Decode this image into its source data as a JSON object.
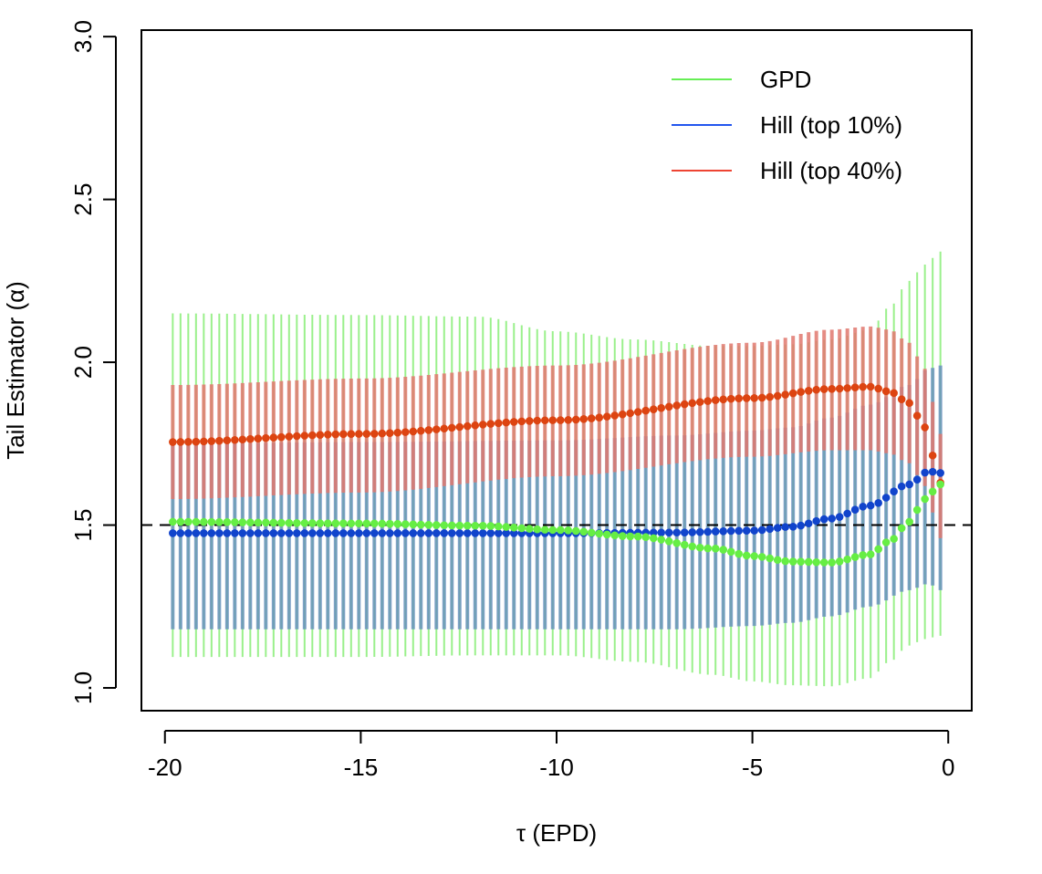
{
  "chart_data": {
    "type": "scatter",
    "title": "",
    "xlabel": "τ (EPD)",
    "ylabel": "Tail Estimator (α)",
    "xlim": [
      -20.6,
      0.6
    ],
    "ylim": [
      0.93,
      3.02
    ],
    "xticks": [
      -20,
      -15,
      -10,
      -5,
      0
    ],
    "xtick_labels": [
      "-20",
      "-15",
      "-10",
      "-5",
      "0"
    ],
    "yticks": [
      1.0,
      1.5,
      2.0,
      2.5,
      3.0
    ],
    "ytick_labels": [
      "1.0",
      "1.5",
      "2.0",
      "2.5",
      "3.0"
    ],
    "reference_line": {
      "y": 1.5,
      "style": "dashed",
      "color": "#000000"
    },
    "legend": {
      "placement": "top-right",
      "entries": [
        {
          "label": "GPD",
          "color": "#66ee55"
        },
        {
          "label": "Hill (top 10%)",
          "color": "#2255ee"
        },
        {
          "label": "Hill (top 40%)",
          "color": "#ee4433"
        }
      ]
    },
    "x_grid": {
      "start": -19.8,
      "end": -0.2,
      "count": 100
    },
    "series": [
      {
        "name": "Hill (top 40%)",
        "color": "#ee4433",
        "point_color": "#dd4411",
        "band_color": "rgba(225,120,110,0.85)",
        "band_width": 4,
        "profile": {
          "x": [
            -19.8,
            -15.0,
            -10.0,
            -5.0,
            -3.0,
            -2.0,
            -1.5,
            -1.0,
            -0.6,
            -0.2
          ],
          "y": [
            1.755,
            1.78,
            1.822,
            1.89,
            1.918,
            1.925,
            1.91,
            1.875,
            1.8,
            1.63
          ],
          "lower": [
            1.58,
            1.6,
            1.65,
            1.71,
            1.73,
            1.73,
            1.72,
            1.69,
            1.62,
            1.46
          ],
          "upper": [
            1.93,
            1.95,
            1.99,
            2.06,
            2.1,
            2.11,
            2.1,
            2.06,
            1.98,
            1.78
          ]
        }
      },
      {
        "name": "Hill (top 10%)",
        "color": "#2255ee",
        "point_color": "#1144cc",
        "band_color": "rgba(100,140,190,0.8)",
        "band_width": 4,
        "profile": {
          "x": [
            -19.8,
            -15.0,
            -10.0,
            -7.0,
            -5.0,
            -4.0,
            -3.0,
            -2.0,
            -1.0,
            -0.5,
            -0.2
          ],
          "y": [
            1.475,
            1.475,
            1.475,
            1.477,
            1.483,
            1.495,
            1.52,
            1.56,
            1.625,
            1.665,
            1.66
          ],
          "lower": [
            1.18,
            1.18,
            1.18,
            1.18,
            1.19,
            1.2,
            1.22,
            1.25,
            1.3,
            1.32,
            1.3
          ],
          "upper": [
            1.75,
            1.755,
            1.76,
            1.775,
            1.79,
            1.8,
            1.83,
            1.87,
            1.93,
            1.98,
            1.99
          ]
        }
      },
      {
        "name": "GPD",
        "color": "#66ee55",
        "point_color": "#66ee44",
        "band_color": "rgba(120,235,100,0.75)",
        "band_width": 2,
        "profile": {
          "x": [
            -19.8,
            -15.0,
            -12.0,
            -10.0,
            -8.0,
            -6.0,
            -5.0,
            -4.0,
            -3.0,
            -2.0,
            -1.5,
            -1.0,
            -0.6,
            -0.2
          ],
          "y": [
            1.51,
            1.505,
            1.498,
            1.485,
            1.465,
            1.428,
            1.405,
            1.388,
            1.385,
            1.41,
            1.45,
            1.51,
            1.58,
            1.625
          ],
          "lower": [
            1.095,
            1.095,
            1.1,
            1.1,
            1.08,
            1.04,
            1.02,
            1.008,
            1.005,
            1.03,
            1.08,
            1.13,
            1.15,
            1.16
          ],
          "upper": [
            2.15,
            2.145,
            2.14,
            2.095,
            2.07,
            2.05,
            2.05,
            2.055,
            2.07,
            2.1,
            2.17,
            2.25,
            2.3,
            2.34
          ]
        }
      }
    ]
  }
}
